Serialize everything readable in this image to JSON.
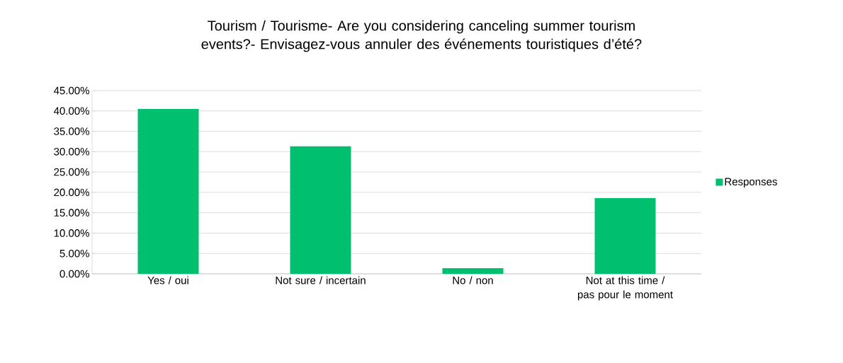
{
  "chart_data": {
    "type": "bar",
    "title": "Tourism / Tourisme- Are you considering canceling summer tourism events?- Envisagez-vous annuler des événements touristiques d’été?",
    "categories": [
      "Yes / oui",
      "Not sure / incertain",
      "No / non",
      "Not at this time / pas pour le moment"
    ],
    "series": [
      {
        "name": "Responses",
        "color": "#00bf6f",
        "values": [
          40.5,
          31.3,
          1.4,
          18.6
        ]
      }
    ],
    "ylim": [
      0,
      45
    ],
    "yticks": [
      {
        "value": 0,
        "label": "0.00%"
      },
      {
        "value": 5,
        "label": "5.00%"
      },
      {
        "value": 10,
        "label": "10.00%"
      },
      {
        "value": 15,
        "label": "15.00%"
      },
      {
        "value": 20,
        "label": "20.00%"
      },
      {
        "value": 25,
        "label": "25.00%"
      },
      {
        "value": 30,
        "label": "30.00%"
      },
      {
        "value": 35,
        "label": "35.00%"
      },
      {
        "value": 40,
        "label": "40.00%"
      },
      {
        "value": 45,
        "label": "45.00%"
      }
    ],
    "grid": "y",
    "legend": "right"
  }
}
